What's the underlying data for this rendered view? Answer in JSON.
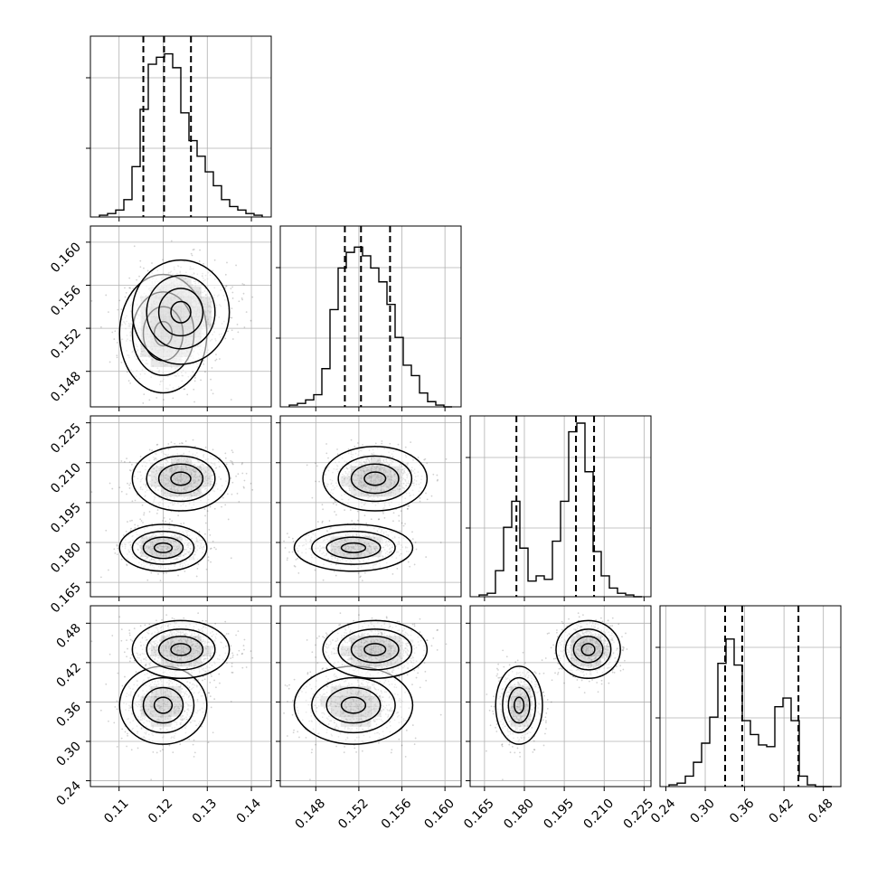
{
  "chart_data": {
    "type": "corner",
    "grid": true,
    "colors": {
      "line": "#000000",
      "grid": "#b0b0b0",
      "density": "#000000",
      "fill": "#ffffff"
    },
    "params": [
      {
        "range": [
          0.1035,
          0.1445
        ],
        "ticks": [
          0.11,
          0.12,
          0.13,
          0.14
        ],
        "tick_labels": [
          "0.11",
          "0.12",
          "0.13",
          "0.14"
        ],
        "quantiles": [
          0.1155,
          0.1202,
          0.1263
        ]
      },
      {
        "range": [
          0.1447,
          0.1615
        ],
        "ticks": [
          0.148,
          0.152,
          0.156,
          0.16
        ],
        "tick_labels": [
          "0.148",
          "0.152",
          "0.156",
          "0.160"
        ],
        "quantiles": [
          0.1507,
          0.1522,
          0.1549
        ]
      },
      {
        "range": [
          0.1596,
          0.2276
        ],
        "ticks": [
          0.165,
          0.18,
          0.195,
          0.21,
          0.225
        ],
        "tick_labels": [
          "0.165",
          "0.180",
          "0.195",
          "0.210",
          "0.225"
        ],
        "quantiles": [
          0.177,
          0.1994,
          0.2062
        ]
      },
      {
        "range": [
          0.2311,
          0.5066
        ],
        "ticks": [
          0.24,
          0.3,
          0.36,
          0.42,
          0.48
        ],
        "tick_labels": [
          "0.24",
          "0.30",
          "0.36",
          "0.42",
          "0.48"
        ],
        "quantiles": [
          0.3303,
          0.3563,
          0.442
        ]
      }
    ],
    "histograms": [
      [
        1,
        2,
        4,
        10,
        29,
        62,
        88,
        92,
        94,
        86,
        60,
        44,
        35,
        26,
        18,
        10,
        6,
        4,
        2,
        1
      ],
      [
        1,
        2,
        4,
        7,
        22,
        56,
        80,
        89,
        92,
        87,
        80,
        72,
        59,
        40,
        24,
        18,
        8,
        3,
        1,
        0
      ],
      [
        1,
        2,
        15,
        40,
        55,
        28,
        9,
        12,
        10,
        32,
        55,
        95,
        100,
        72,
        26,
        12,
        5,
        2,
        1,
        0
      ],
      [
        1,
        2,
        6,
        14,
        25,
        40,
        71,
        85,
        70,
        38,
        30,
        24,
        23,
        46,
        51,
        38,
        6,
        1,
        0,
        0
      ]
    ],
    "hist_ylim": [
      0,
      100
    ],
    "modes": [
      {
        "center": [
          0.12,
          0.1515,
          0.178,
          0.355
        ],
        "sd": [
          0.0045,
          0.0025,
          0.004,
          0.027
        ],
        "weight": 0.45
      },
      {
        "center": [
          0.124,
          0.1535,
          0.204,
          0.44
        ],
        "sd": [
          0.005,
          0.0022,
          0.0055,
          0.02
        ],
        "weight": 0.55
      }
    ],
    "contour_hotspots": [
      {
        "panel": [
          1,
          0
        ],
        "points": [
          [
            0.1185,
            0.1515
          ]
        ]
      },
      {
        "panel": [
          2,
          0
        ],
        "points": [
          [
            0.119,
            0.177
          ],
          [
            0.122,
            0.203
          ]
        ]
      },
      {
        "panel": [
          2,
          1
        ],
        "points": [
          [
            0.1515,
            0.177
          ],
          [
            0.155,
            0.202
          ]
        ]
      },
      {
        "panel": [
          3,
          0
        ],
        "points": [
          [
            0.119,
            0.353
          ],
          [
            0.125,
            0.445
          ]
        ]
      },
      {
        "panel": [
          3,
          1
        ],
        "points": [
          [
            0.1515,
            0.353
          ],
          [
            0.155,
            0.445
          ]
        ]
      },
      {
        "panel": [
          3,
          2
        ],
        "points": [
          [
            0.177,
            0.353
          ],
          [
            0.203,
            0.443
          ],
          [
            0.207,
            0.337
          ]
        ]
      }
    ]
  }
}
